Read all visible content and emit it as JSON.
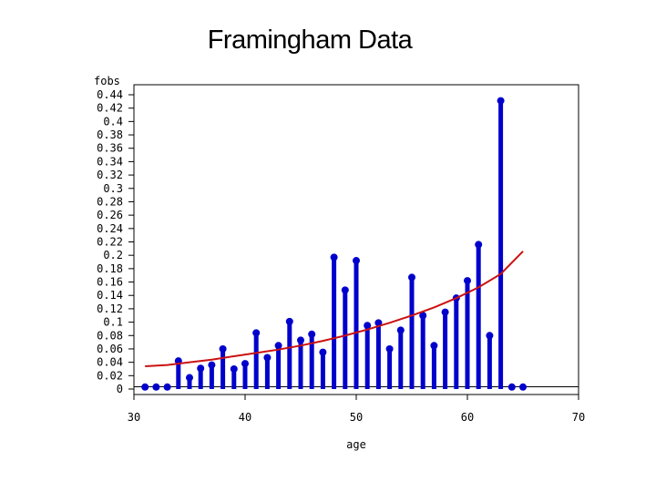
{
  "chart_data": {
    "type": "bar",
    "title": "Framingham Data",
    "xlabel": "age",
    "ylabel": "fobs",
    "xlim": [
      30,
      70
    ],
    "ylim": [
      0,
      0.44
    ],
    "x_ticks": [
      30,
      40,
      50,
      60,
      70
    ],
    "x_tick_labels": [
      "30",
      "40",
      "50",
      "60",
      "70"
    ],
    "y_ticks": [
      0,
      0.02,
      0.04,
      0.06,
      0.08,
      0.1,
      0.12,
      0.14,
      0.16,
      0.18,
      0.2,
      0.22,
      0.24,
      0.26,
      0.28,
      0.3,
      0.32,
      0.34,
      0.36,
      0.38,
      0.4,
      0.42,
      0.44
    ],
    "y_tick_labels": [
      "0",
      "0.02",
      "0.04",
      "0.06",
      "0.08",
      "0.1",
      "0.12",
      "0.14",
      "0.16",
      "0.18",
      "0.2",
      "0.22",
      "0.24",
      "0.26",
      "0.28",
      "0.3",
      "0.32",
      "0.34",
      "0.36",
      "0.38",
      "0.4",
      "0.42",
      "0.44"
    ],
    "grid": false,
    "colors": {
      "bars": "#0000cc",
      "curve": "#cc1111",
      "axis": "#000000"
    },
    "series": [
      {
        "kind": "needle",
        "x": [
          31,
          32,
          33,
          34,
          35,
          36,
          37,
          38,
          39,
          40,
          41,
          42,
          43,
          44,
          45,
          46,
          47,
          48,
          49,
          50,
          51,
          52,
          53,
          54,
          55,
          56,
          57,
          58,
          59,
          60,
          61,
          62,
          63,
          64,
          65
        ],
        "values": [
          0.003,
          0.003,
          0.003,
          0.042,
          0.017,
          0.031,
          0.036,
          0.06,
          0.03,
          0.038,
          0.084,
          0.047,
          0.065,
          0.101,
          0.073,
          0.082,
          0.055,
          0.197,
          0.148,
          0.192,
          0.095,
          0.099,
          0.06,
          0.088,
          0.167,
          0.11,
          0.065,
          0.115,
          0.136,
          0.162,
          0.216,
          0.08,
          0.431,
          0.003,
          0.003
        ]
      },
      {
        "kind": "fitted-line",
        "x": [
          31,
          33,
          35,
          37,
          39,
          41,
          43,
          45,
          47,
          49,
          51,
          53,
          55,
          57,
          59,
          61,
          63,
          65
        ],
        "values": [
          0.034,
          0.036,
          0.04,
          0.044,
          0.049,
          0.054,
          0.059,
          0.065,
          0.072,
          0.08,
          0.089,
          0.099,
          0.11,
          0.122,
          0.136,
          0.152,
          0.172,
          0.206
        ]
      }
    ]
  }
}
